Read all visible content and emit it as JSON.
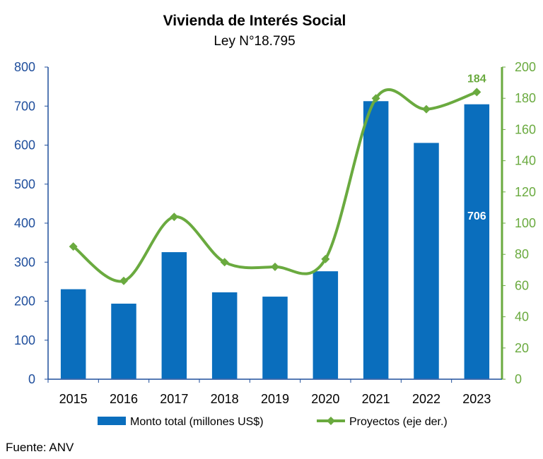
{
  "chart_data": {
    "type": "bar",
    "title": "Vivienda de Interés Social",
    "subtitle": "Ley N°18.795",
    "categories": [
      "2015",
      "2016",
      "2017",
      "2018",
      "2019",
      "2020",
      "2021",
      "2022",
      "2023"
    ],
    "series": [
      {
        "name": "Monto total (millones US$)",
        "type": "bar",
        "axis": "left",
        "color": "#0a6ebd",
        "values": [
          232,
          195,
          327,
          224,
          213,
          278,
          714,
          607,
          706
        ]
      },
      {
        "name": "Proyectos (eje der.)",
        "type": "line",
        "axis": "right",
        "smooth": true,
        "marker": "diamond",
        "color": "#6aaa3f",
        "values": [
          85,
          63,
          104,
          75,
          72,
          77,
          180,
          173,
          184
        ]
      }
    ],
    "y_left": {
      "ylim": [
        0,
        800
      ],
      "ticks": [
        "0",
        "100",
        "200",
        "300",
        "400",
        "500",
        "600",
        "700",
        "800"
      ]
    },
    "y_right": {
      "ylim": [
        0,
        200
      ],
      "ticks": [
        "0",
        "20",
        "40",
        "60",
        "80",
        "100",
        "120",
        "140",
        "160",
        "180",
        "200"
      ]
    },
    "annotations": [
      {
        "series": 0,
        "index": 8,
        "text": "706"
      },
      {
        "series": 1,
        "index": 8,
        "text": "184"
      }
    ],
    "grid": false,
    "legend": "bottom",
    "source": "Fuente: ANV"
  }
}
